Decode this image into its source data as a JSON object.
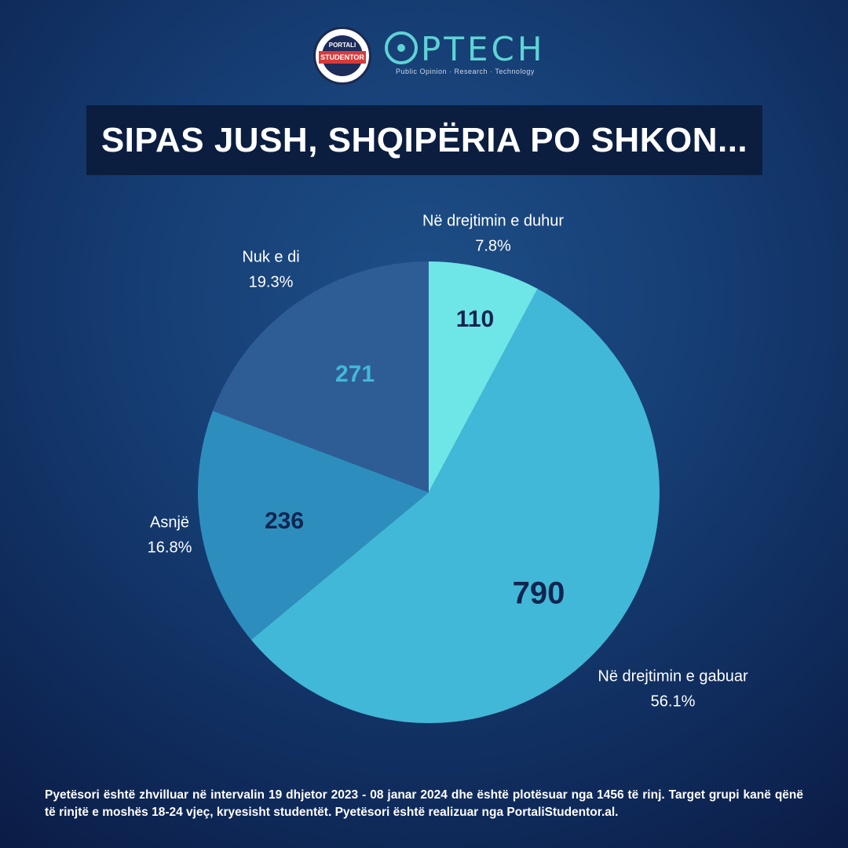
{
  "logos": {
    "portali": {
      "top_text": "PORTALI",
      "band_text": "STUDENTOR"
    },
    "optech": {
      "name": "PTECH",
      "tagline": "Public Opinion · Research · Technology"
    }
  },
  "title": "SIPAS JUSH, SHQIPËRIA PO SHKON...",
  "chart_data": {
    "type": "pie",
    "title": "SIPAS JUSH, SHQIPËRIA PO SHKON...",
    "start_angle_deg": 0,
    "direction": "clockwise",
    "slices": [
      {
        "label": "Në drejtimin e duhur",
        "value": 110,
        "percent": "7.8%",
        "color": "#6ee5e6",
        "value_color": "#0f2550"
      },
      {
        "label": "Në drejtimin e gabuar",
        "value": 790,
        "percent": "56.1%",
        "color": "#42b8d8",
        "value_color": "#0f2550"
      },
      {
        "label": "Asnjë",
        "value": 236,
        "percent": "16.8%",
        "color": "#2d8ebd",
        "value_color": "#0f2550"
      },
      {
        "label": "Nuk e di",
        "value": 271,
        "percent": "19.3%",
        "color": "#2e5d96",
        "value_color": "#42b8d8"
      }
    ]
  },
  "footnote": "Pyetësori është zhvilluar në intervalin 19 dhjetor 2023 - 08 janar 2024 dhe është plotësuar nga 1456 të rinj. Target grupi kanë qënë të rinjtë e moshës 18-24 vjeç, kryesisht studentët. Pyetësori është realizuar nga PortaliStudentor.al."
}
